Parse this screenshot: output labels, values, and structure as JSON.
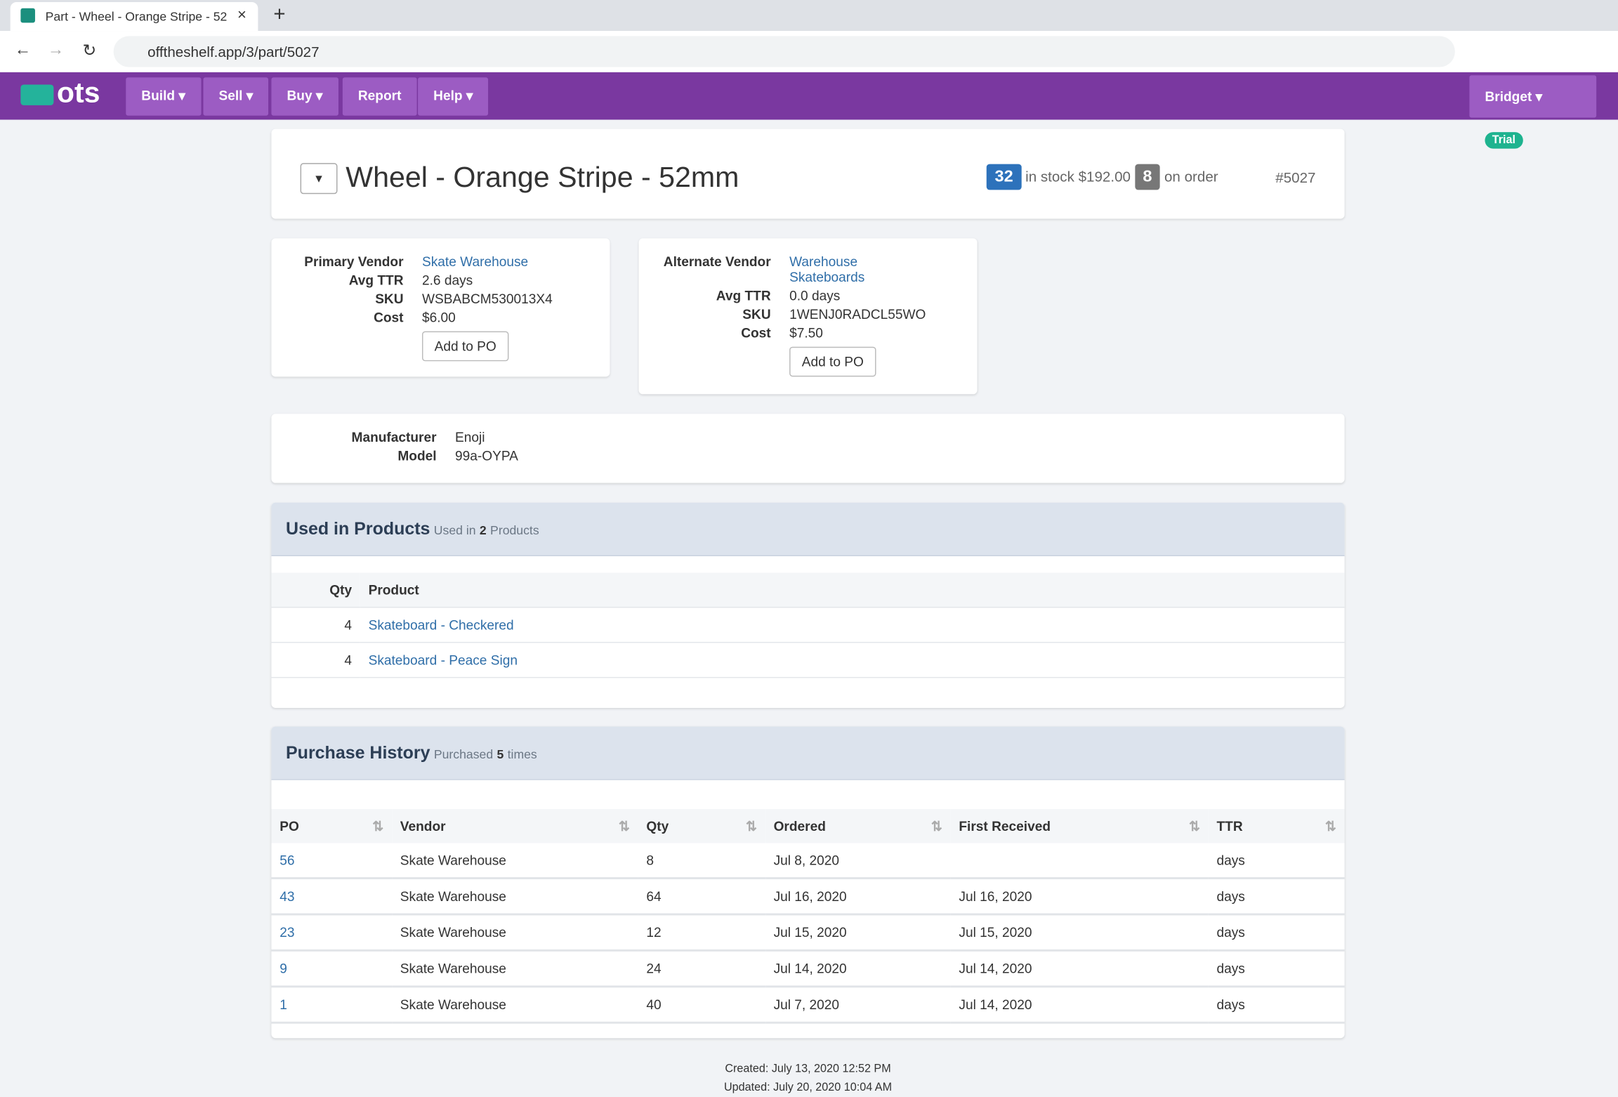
{
  "browser": {
    "tab_title": "Part - Wheel - Orange Stripe - 52",
    "url": "offtheshelf.app/3/part/5027"
  },
  "nav": {
    "logo": "ots",
    "menu": [
      "Build",
      "Sell",
      "Buy",
      "Report",
      "Help"
    ],
    "user": "Bridget",
    "badge": "Trial"
  },
  "header": {
    "title": "Wheel - Orange Stripe - 52mm",
    "stock": "32",
    "stock_label": "in stock",
    "stock_value": "$192.00",
    "on_order": "8",
    "on_order_label": "on order",
    "part_id": "#5027"
  },
  "vendors": [
    {
      "label": "Primary Vendor",
      "name": "Skate Warehouse",
      "rows": [
        [
          "Avg TTR",
          "2.6 days"
        ],
        [
          "SKU",
          "WSBABCM530013X4"
        ],
        [
          "Cost",
          "$6.00"
        ]
      ],
      "button": "Add to PO"
    },
    {
      "label": "Alternate Vendor",
      "name": "Warehouse Skateboards",
      "rows": [
        [
          "Avg TTR",
          "0.0 days"
        ],
        [
          "SKU",
          "1WENJ0RADCL55WO"
        ],
        [
          "Cost",
          "$7.50"
        ]
      ],
      "button": "Add to PO"
    }
  ],
  "manufacturer": {
    "rows": [
      [
        "Manufacturer",
        "Enoji"
      ],
      [
        "Model",
        "99a-OYPA"
      ]
    ]
  },
  "used_in": {
    "title": "Used in Products",
    "sub_pre": "Used in",
    "count": "2",
    "sub_post": "Products",
    "columns": [
      "Qty",
      "Product"
    ],
    "rows": [
      [
        "4",
        "Skateboard - Checkered"
      ],
      [
        "4",
        "Skateboard - Peace Sign"
      ]
    ]
  },
  "purchases": {
    "title": "Purchase History",
    "sub_pre": "Purchased",
    "count": "5",
    "sub_post": "times",
    "columns": [
      "PO",
      "Vendor",
      "Qty",
      "Ordered",
      "First Received",
      "TTR"
    ],
    "rows": [
      [
        "56",
        "Skate Warehouse",
        "8",
        "Jul 8, 2020",
        null,
        "days"
      ],
      [
        "43",
        "Skate Warehouse",
        "64",
        "Jul 16, 2020",
        "Jul 16, 2020",
        "days"
      ],
      [
        "23",
        "Skate Warehouse",
        "12",
        "Jul 15, 2020",
        "Jul 15, 2020",
        "days"
      ],
      [
        "9",
        "Skate Warehouse",
        "24",
        "Jul 14, 2020",
        "Jul 14, 2020",
        "days"
      ],
      [
        "1",
        "Skate Warehouse",
        "40",
        "Jul 7, 2020",
        "Jul 14, 2020",
        "days"
      ]
    ]
  },
  "footer": {
    "created": "Created: July 13, 2020 12:52 PM",
    "updated": "Updated: July 20, 2020 10:04 AM"
  }
}
